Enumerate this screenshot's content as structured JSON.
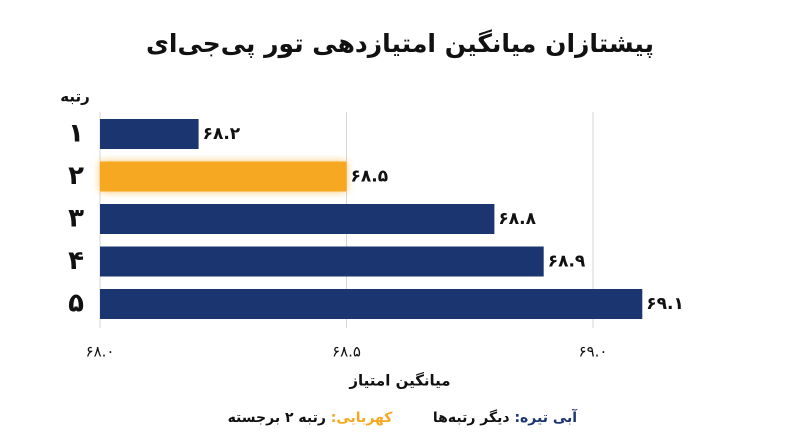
{
  "chart_data": {
    "type": "barh",
    "title": "پیشتازان میانگین امتیازدهی تور پی‌جی‌ای",
    "y_label": "رتبه",
    "x_label": "میانگین امتیاز",
    "categories": [
      "۱",
      "۲",
      "۳",
      "۴",
      "۵"
    ],
    "values": [
      68.2,
      68.5,
      68.8,
      68.9,
      69.1
    ],
    "value_labels": [
      "۶۸.۲",
      "۶۸.۵",
      "۶۸.۸",
      "۶۸.۹",
      "۶۹.۱"
    ],
    "colors": [
      "#1b3570",
      "#f7a823",
      "#1b3570",
      "#1b3570",
      "#1b3570"
    ],
    "xlim": [
      68.0,
      69.2
    ],
    "xticks": [
      {
        "value": 68.0,
        "label": "۶۸.۰"
      },
      {
        "value": 68.5,
        "label": "۶۸.۵"
      },
      {
        "value": 69.0,
        "label": "۶۹.۰"
      }
    ],
    "grid": true,
    "legend": [
      {
        "key": "آبی تیره:",
        "text": "دیگر رتبه‌ها",
        "color": "#1b3570"
      },
      {
        "key": "کهربایی:",
        "text": "رتبه ۲ برجسته",
        "color": "#f7a823"
      }
    ]
  }
}
